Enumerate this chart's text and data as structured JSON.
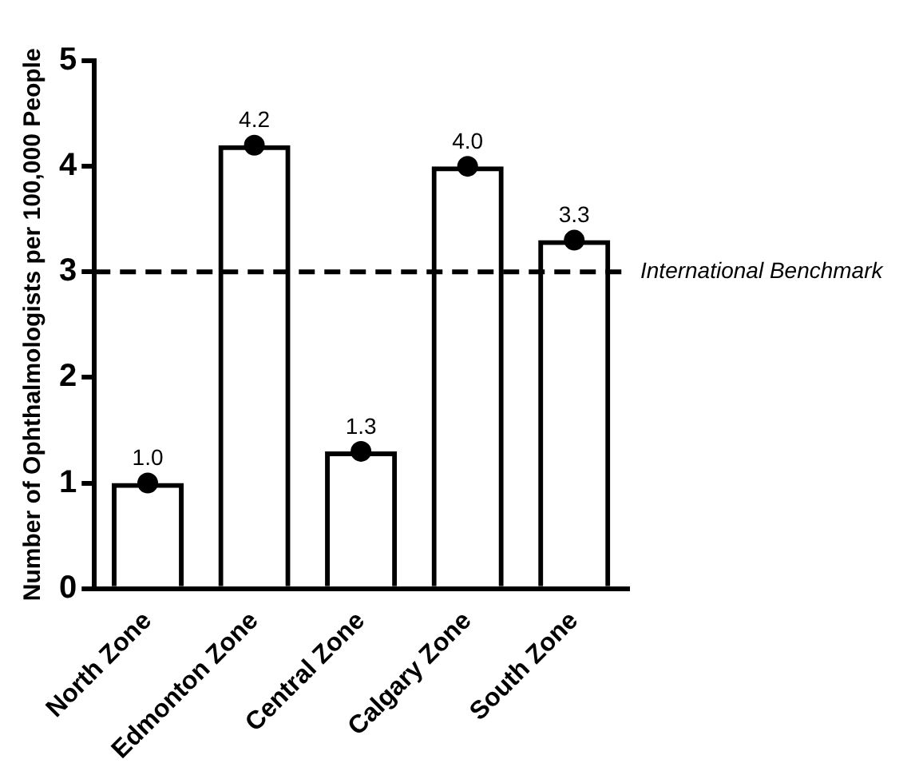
{
  "chart_data": {
    "type": "bar",
    "ylabel": "Number of Ophthalmologists per 100,000 People",
    "categories": [
      "North Zone",
      "Edmonton Zone",
      "Central Zone",
      "Calgary Zone",
      "South Zone"
    ],
    "series": [
      {
        "type": "bar",
        "color": "#000000",
        "values": [
          1.0,
          4.2,
          1.3,
          4.0,
          3.3
        ],
        "value_labels": [
          "1.0",
          "4.2",
          "1.3",
          "4.0",
          "3.3"
        ]
      },
      {
        "type": "scatter",
        "color": "#000000",
        "x": [
          "North Zone",
          "Edmonton Zone",
          "Central Zone",
          "Calgary Zone",
          "South Zone"
        ],
        "values": [
          1.0,
          4.2,
          1.3,
          4.0,
          3.3
        ]
      }
    ],
    "ylim": [
      0,
      5
    ],
    "yticks": [
      0,
      1,
      2,
      3,
      4,
      5
    ],
    "grid": false,
    "legend": false,
    "marker": "circle",
    "ref_lines": [
      {
        "axis": "y",
        "value": 3,
        "label": "International Benchmark",
        "line_style": "dashed",
        "color": "#000000"
      }
    ]
  }
}
